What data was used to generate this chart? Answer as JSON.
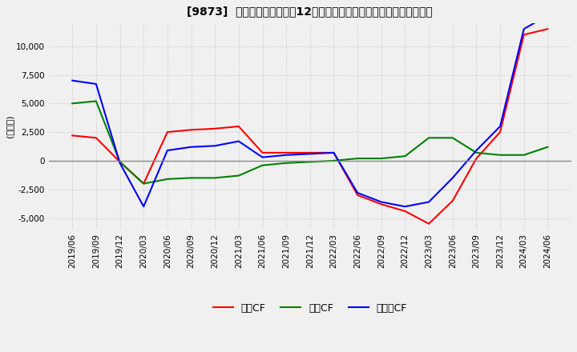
{
  "title": "[9873]  キャッシュフローの12か月移動合計の対前年同期増減額の推移",
  "ylabel": "(百万円)",
  "ylim": [
    -6000,
    12000
  ],
  "yticks": [
    -5000,
    -2500,
    0,
    2500,
    5000,
    7500,
    10000
  ],
  "legend_labels": [
    "営業CF",
    "投資CF",
    "フリーCF"
  ],
  "colors": {
    "eigyo": "#ff0000",
    "toshi": "#008000",
    "free": "#0000ff"
  },
  "x_labels": [
    "2019/06",
    "2019/09",
    "2019/12",
    "2020/03",
    "2020/06",
    "2020/09",
    "2020/12",
    "2021/03",
    "2021/06",
    "2021/09",
    "2021/12",
    "2022/03",
    "2022/06",
    "2022/09",
    "2022/12",
    "2023/03",
    "2023/06",
    "2023/09",
    "2023/12",
    "2024/03",
    "2024/06"
  ],
  "eigyo_cf": [
    2200,
    2000,
    -100,
    -2000,
    2500,
    2700,
    2800,
    3000,
    700,
    700,
    700,
    700,
    -3000,
    -3800,
    -4400,
    -5500,
    -3500,
    200,
    2500,
    11000,
    11500
  ],
  "toshi_cf": [
    5000,
    5200,
    -100,
    -2000,
    -1600,
    -1500,
    -1500,
    -1300,
    -400,
    -200,
    -100,
    0,
    200,
    200,
    400,
    2000,
    2000,
    700,
    500,
    500,
    1200
  ],
  "free_cf": [
    7000,
    6700,
    -200,
    -4000,
    900,
    1200,
    1300,
    1700,
    300,
    500,
    600,
    700,
    -2800,
    -3600,
    -4000,
    -3600,
    -1500,
    900,
    3000,
    11500,
    12700
  ],
  "background_color": "#f0f0f0",
  "grid_color": "#bbbbbb",
  "grid_style": "dotted"
}
